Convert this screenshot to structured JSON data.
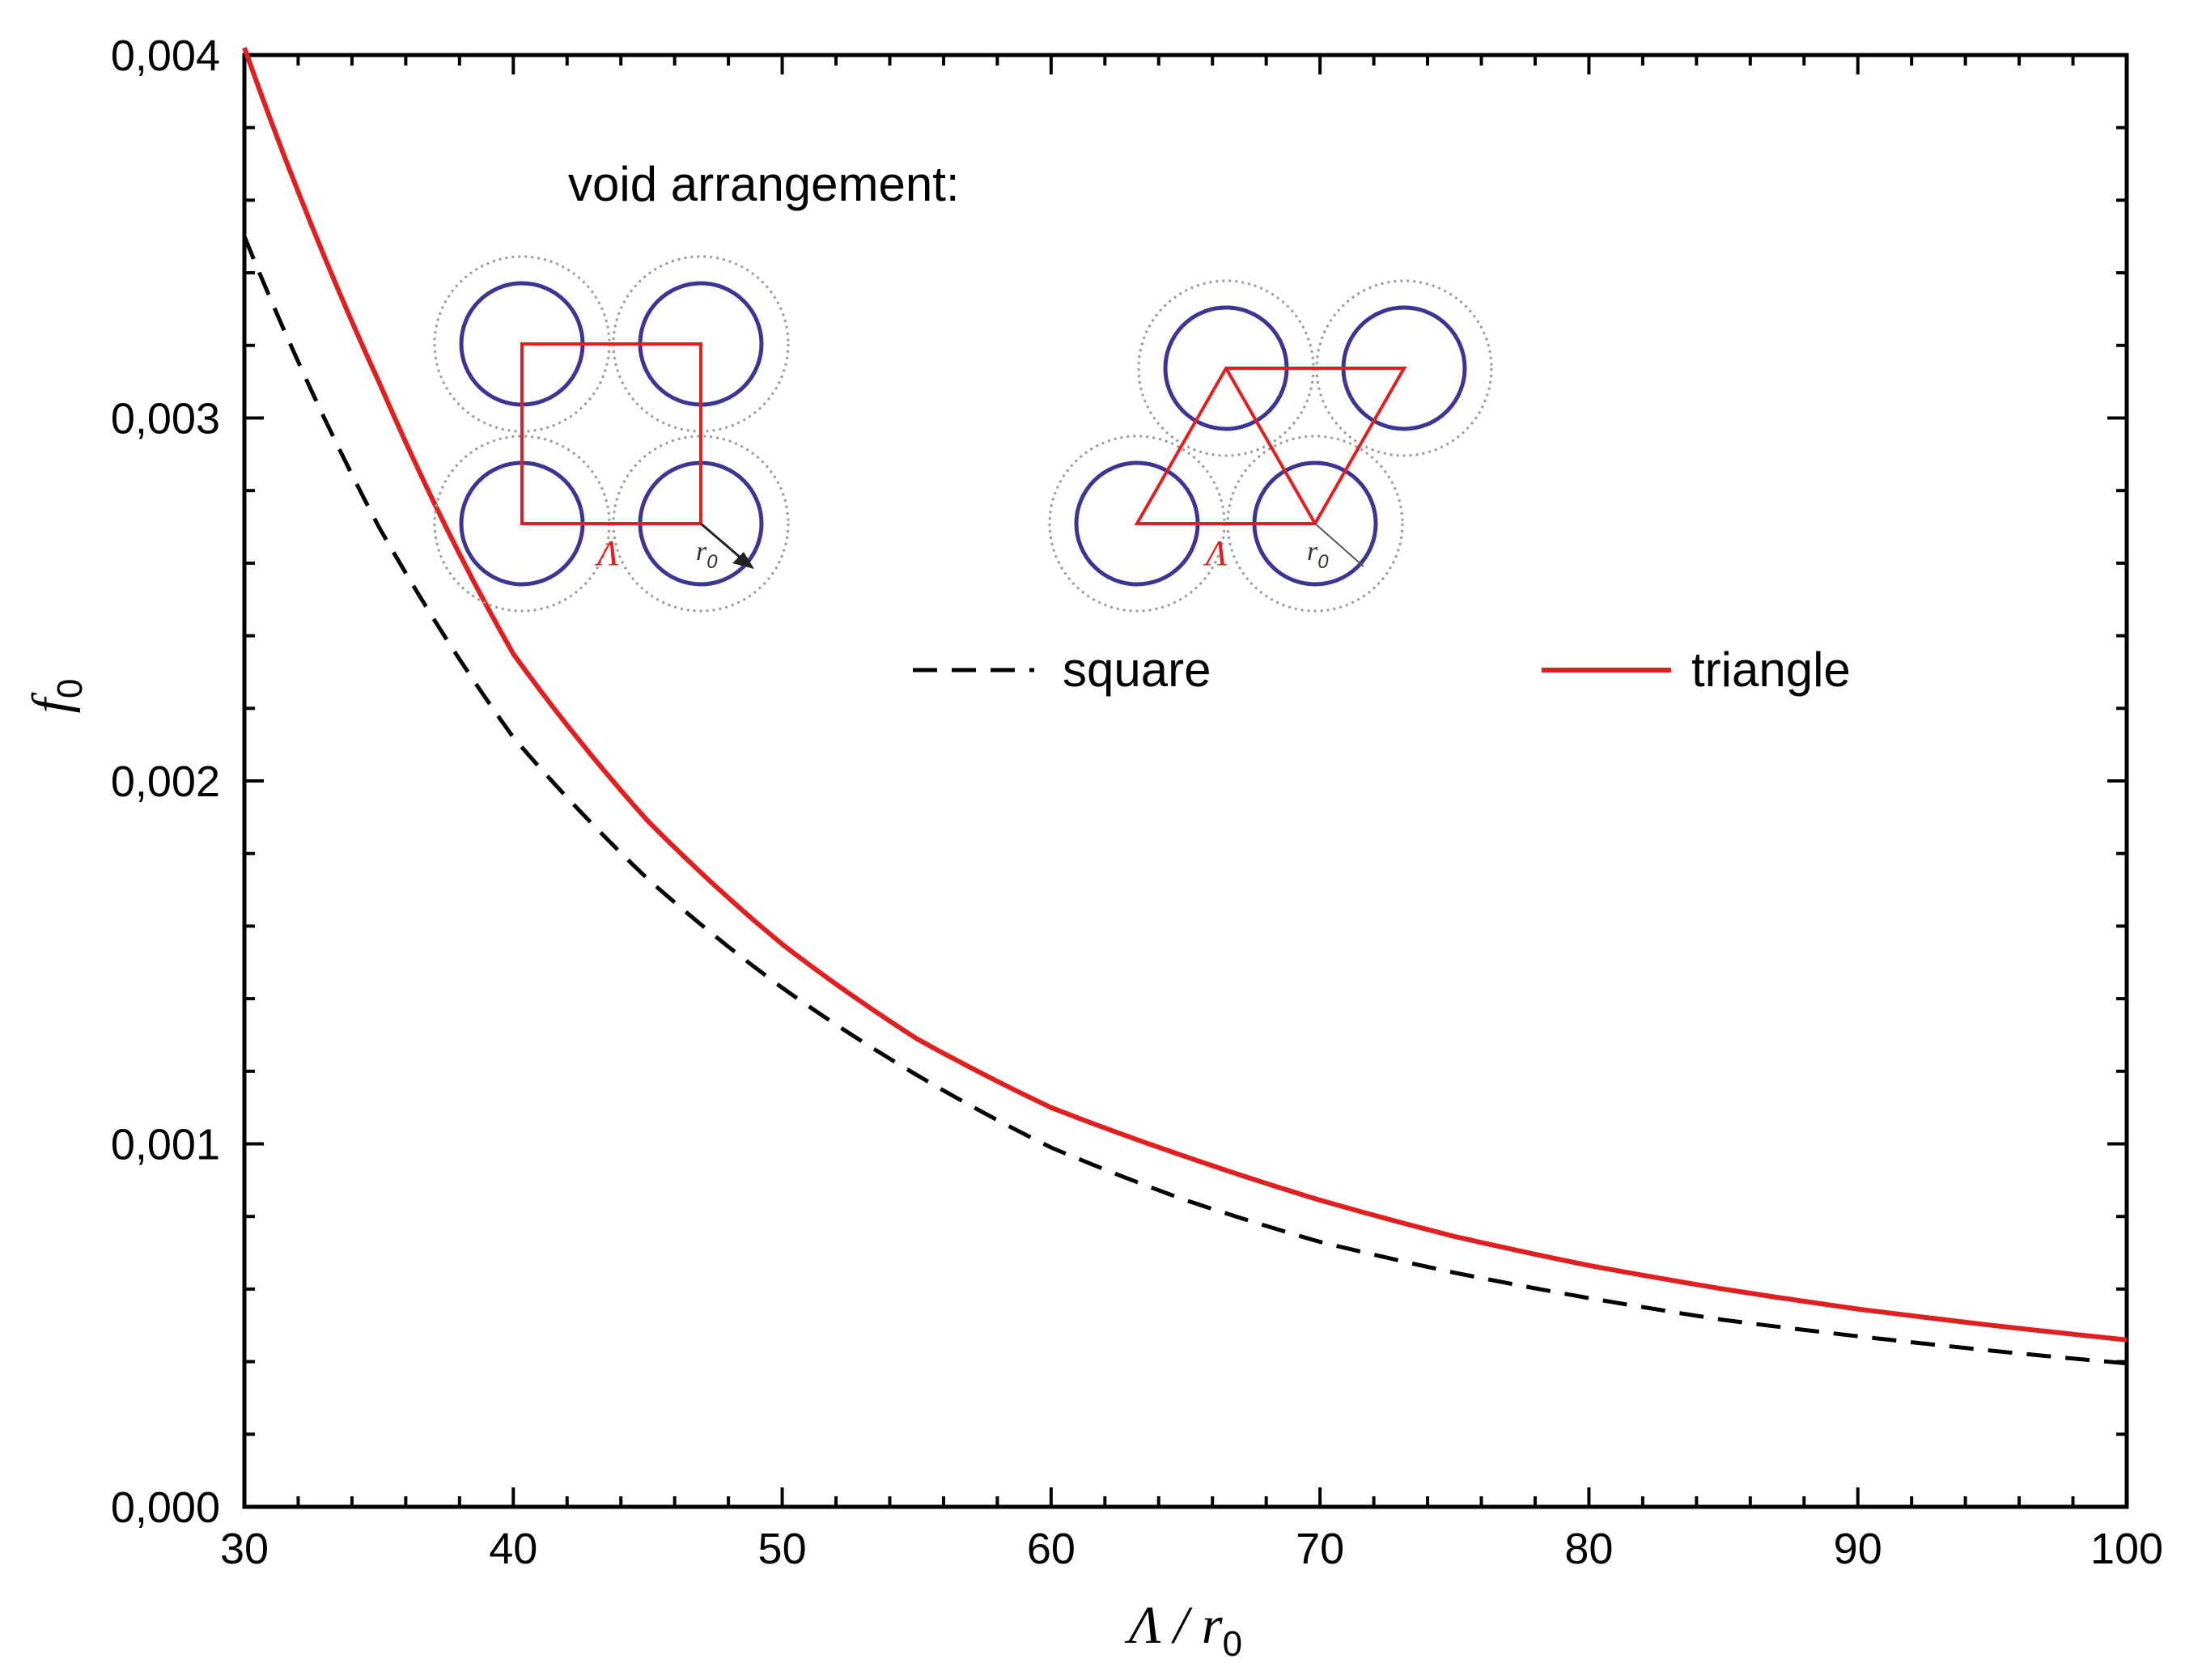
{
  "chart_data": {
    "type": "line",
    "title": "",
    "xlabel": "Λ / r",
    "xlabel_subscript": "0",
    "ylabel": "f",
    "ylabel_subscript": "0",
    "xlim": [
      30,
      100
    ],
    "ylim": [
      0.0,
      0.004
    ],
    "x_ticks": [
      30,
      40,
      50,
      60,
      70,
      80,
      90,
      100
    ],
    "x_tick_labels": [
      "30",
      "40",
      "50",
      "60",
      "70",
      "80",
      "90",
      "100"
    ],
    "y_ticks": [
      0.0,
      0.001,
      0.002,
      0.003,
      0.004
    ],
    "y_tick_labels": [
      "0,000",
      "0,001",
      "0,002",
      "0,003",
      "0,004"
    ],
    "grid": false,
    "legend_position": "upper-center",
    "series": [
      {
        "name": "square",
        "color": "#000000",
        "style": "dashed",
        "x": [
          30,
          35,
          40,
          45,
          50,
          55,
          60,
          65,
          70,
          75,
          80,
          85,
          90,
          95,
          100
        ],
        "y": [
          0.0035,
          0.0027,
          0.00212,
          0.00173,
          0.00143,
          0.00119,
          0.00099,
          0.000845,
          0.00073,
          0.000645,
          0.000575,
          0.000515,
          0.00047,
          0.00043,
          0.000395
        ]
      },
      {
        "name": "triangle",
        "color": "#e02020",
        "style": "solid",
        "x": [
          30,
          35,
          40,
          45,
          50,
          55,
          60,
          65,
          70,
          75,
          80,
          85,
          90,
          95,
          100
        ],
        "y": [
          0.00402,
          0.0031,
          0.00235,
          0.00189,
          0.00155,
          0.00129,
          0.0011,
          0.000965,
          0.000845,
          0.000745,
          0.000665,
          0.0006,
          0.000545,
          0.0005,
          0.00046
        ]
      }
    ],
    "annotations": {
      "title": "void arrangement:",
      "lambda_symbol": "Λ",
      "radius_symbol": "r",
      "radius_subscript": "0"
    }
  },
  "colors": {
    "void_circle": "#3d3592",
    "cell_outline": "#e02020",
    "halo": "#9a9a9a",
    "axis": "#000000"
  }
}
